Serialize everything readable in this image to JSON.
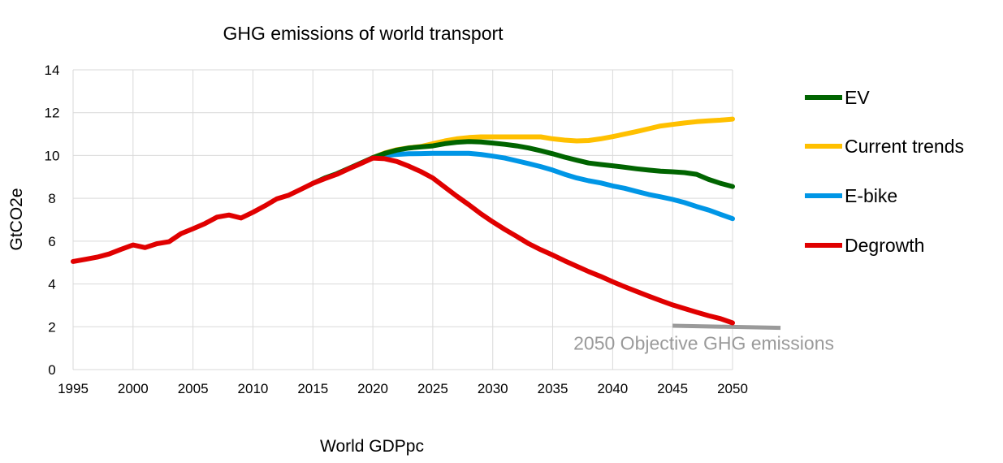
{
  "chart_data": {
    "type": "line",
    "title": "GHG emissions of world transport",
    "xlabel": "World GDPpc",
    "ylabel": "GtCO2e",
    "xlim": [
      1995,
      2050
    ],
    "ylim": [
      0,
      14
    ],
    "x_ticks": [
      1995,
      2000,
      2005,
      2010,
      2015,
      2020,
      2025,
      2030,
      2035,
      2040,
      2045,
      2050
    ],
    "y_ticks": [
      0,
      2,
      4,
      6,
      8,
      10,
      12,
      14
    ],
    "grid": true,
    "legend_position": "right",
    "series": [
      {
        "name": "EV",
        "color": "#006400",
        "points": [
          [
            2015,
            8.7
          ],
          [
            2016,
            8.95
          ],
          [
            2017,
            9.15
          ],
          [
            2018,
            9.4
          ],
          [
            2019,
            9.65
          ],
          [
            2020,
            9.9
          ],
          [
            2021,
            10.1
          ],
          [
            2022,
            10.25
          ],
          [
            2023,
            10.35
          ],
          [
            2024,
            10.4
          ],
          [
            2025,
            10.45
          ],
          [
            2026,
            10.55
          ],
          [
            2027,
            10.62
          ],
          [
            2028,
            10.65
          ],
          [
            2029,
            10.63
          ],
          [
            2030,
            10.58
          ],
          [
            2031,
            10.52
          ],
          [
            2032,
            10.45
          ],
          [
            2033,
            10.35
          ],
          [
            2034,
            10.22
          ],
          [
            2035,
            10.08
          ],
          [
            2036,
            9.92
          ],
          [
            2037,
            9.78
          ],
          [
            2038,
            9.65
          ],
          [
            2039,
            9.58
          ],
          [
            2040,
            9.52
          ],
          [
            2041,
            9.45
          ],
          [
            2042,
            9.38
          ],
          [
            2043,
            9.32
          ],
          [
            2044,
            9.27
          ],
          [
            2045,
            9.24
          ],
          [
            2046,
            9.2
          ],
          [
            2047,
            9.12
          ],
          [
            2048,
            8.88
          ],
          [
            2049,
            8.7
          ],
          [
            2050,
            8.55
          ]
        ]
      },
      {
        "name": "Current trends",
        "color": "#ffc000",
        "points": [
          [
            2020,
            9.9
          ],
          [
            2021,
            10.12
          ],
          [
            2022,
            10.27
          ],
          [
            2023,
            10.36
          ],
          [
            2024,
            10.42
          ],
          [
            2025,
            10.55
          ],
          [
            2026,
            10.68
          ],
          [
            2027,
            10.78
          ],
          [
            2028,
            10.84
          ],
          [
            2029,
            10.87
          ],
          [
            2030,
            10.87
          ],
          [
            2031,
            10.87
          ],
          [
            2032,
            10.87
          ],
          [
            2033,
            10.87
          ],
          [
            2034,
            10.87
          ],
          [
            2035,
            10.78
          ],
          [
            2036,
            10.72
          ],
          [
            2037,
            10.68
          ],
          [
            2038,
            10.7
          ],
          [
            2039,
            10.78
          ],
          [
            2040,
            10.88
          ],
          [
            2041,
            11.0
          ],
          [
            2042,
            11.12
          ],
          [
            2043,
            11.25
          ],
          [
            2044,
            11.38
          ],
          [
            2045,
            11.45
          ],
          [
            2046,
            11.52
          ],
          [
            2047,
            11.58
          ],
          [
            2048,
            11.62
          ],
          [
            2049,
            11.65
          ],
          [
            2050,
            11.7
          ]
        ]
      },
      {
        "name": "E-bike",
        "color": "#0096e6",
        "points": [
          [
            2020,
            9.9
          ],
          [
            2021,
            10.0
          ],
          [
            2022,
            10.05
          ],
          [
            2023,
            10.08
          ],
          [
            2024,
            10.09
          ],
          [
            2025,
            10.1
          ],
          [
            2026,
            10.1
          ],
          [
            2027,
            10.1
          ],
          [
            2028,
            10.1
          ],
          [
            2029,
            10.05
          ],
          [
            2030,
            9.97
          ],
          [
            2031,
            9.88
          ],
          [
            2032,
            9.75
          ],
          [
            2033,
            9.62
          ],
          [
            2034,
            9.48
          ],
          [
            2035,
            9.32
          ],
          [
            2036,
            9.12
          ],
          [
            2037,
            8.95
          ],
          [
            2038,
            8.82
          ],
          [
            2039,
            8.72
          ],
          [
            2040,
            8.58
          ],
          [
            2041,
            8.47
          ],
          [
            2042,
            8.32
          ],
          [
            2043,
            8.18
          ],
          [
            2044,
            8.07
          ],
          [
            2045,
            7.95
          ],
          [
            2046,
            7.8
          ],
          [
            2047,
            7.62
          ],
          [
            2048,
            7.45
          ],
          [
            2049,
            7.25
          ],
          [
            2050,
            7.05
          ]
        ]
      },
      {
        "name": "Degrowth",
        "color": "#e00000",
        "points": [
          [
            1995,
            5.05
          ],
          [
            1996,
            5.15
          ],
          [
            1997,
            5.25
          ],
          [
            1998,
            5.4
          ],
          [
            1999,
            5.62
          ],
          [
            2000,
            5.82
          ],
          [
            2001,
            5.7
          ],
          [
            2002,
            5.88
          ],
          [
            2003,
            5.97
          ],
          [
            2004,
            6.35
          ],
          [
            2005,
            6.58
          ],
          [
            2006,
            6.82
          ],
          [
            2007,
            7.12
          ],
          [
            2008,
            7.22
          ],
          [
            2009,
            7.08
          ],
          [
            2010,
            7.35
          ],
          [
            2011,
            7.65
          ],
          [
            2012,
            7.98
          ],
          [
            2013,
            8.15
          ],
          [
            2014,
            8.42
          ],
          [
            2015,
            8.7
          ],
          [
            2016,
            8.92
          ],
          [
            2017,
            9.12
          ],
          [
            2018,
            9.38
          ],
          [
            2019,
            9.62
          ],
          [
            2020,
            9.88
          ],
          [
            2021,
            9.85
          ],
          [
            2022,
            9.72
          ],
          [
            2023,
            9.5
          ],
          [
            2024,
            9.25
          ],
          [
            2025,
            8.95
          ],
          [
            2026,
            8.52
          ],
          [
            2027,
            8.1
          ],
          [
            2028,
            7.7
          ],
          [
            2029,
            7.28
          ],
          [
            2030,
            6.9
          ],
          [
            2031,
            6.55
          ],
          [
            2032,
            6.22
          ],
          [
            2033,
            5.88
          ],
          [
            2034,
            5.6
          ],
          [
            2035,
            5.35
          ],
          [
            2036,
            5.08
          ],
          [
            2037,
            4.83
          ],
          [
            2038,
            4.58
          ],
          [
            2039,
            4.35
          ],
          [
            2040,
            4.1
          ],
          [
            2041,
            3.87
          ],
          [
            2042,
            3.65
          ],
          [
            2043,
            3.43
          ],
          [
            2044,
            3.22
          ],
          [
            2045,
            3.02
          ],
          [
            2046,
            2.85
          ],
          [
            2047,
            2.68
          ],
          [
            2048,
            2.52
          ],
          [
            2049,
            2.38
          ],
          [
            2050,
            2.18
          ]
        ]
      }
    ],
    "annotation": {
      "text": "2050 Objective GHG emissions",
      "color": "#9a9a9a",
      "line_points": [
        [
          2045,
          2.05
        ],
        [
          2054,
          1.95
        ]
      ]
    }
  }
}
